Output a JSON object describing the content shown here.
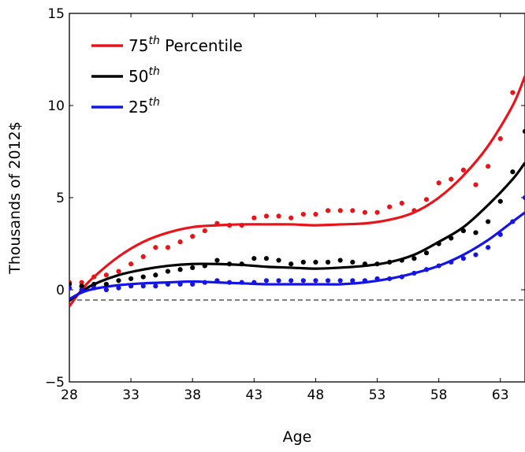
{
  "chart_data": {
    "type": "scatter",
    "xlabel": "Age",
    "ylabel": "Thousands of 2012$",
    "xlim": [
      28,
      65
    ],
    "ylim": [
      -5,
      15
    ],
    "xticks": [
      28,
      33,
      38,
      43,
      48,
      53,
      58,
      63
    ],
    "yticks": [
      -5,
      0,
      5,
      10,
      15
    ],
    "ytick_labels": [
      "−5",
      "0",
      "5",
      "10",
      "15"
    ],
    "grid": false,
    "reference_line": {
      "y": 0,
      "style": "dashed"
    },
    "legend": {
      "placement": "top-left",
      "entries": [
        {
          "base": "75",
          "sup": "th",
          "suffix": " Percentile",
          "color": "#e8141a"
        },
        {
          "base": "50",
          "sup": "th",
          "suffix": "",
          "color": "#000000"
        },
        {
          "base": "25",
          "sup": "th",
          "suffix": "",
          "color": "#1414e6"
        }
      ]
    },
    "series": [
      {
        "color": "#e8141a",
        "points": [
          [
            28,
            0.4
          ],
          [
            29,
            0.4
          ],
          [
            30,
            0.7
          ],
          [
            31,
            0.8
          ],
          [
            32,
            1.0
          ],
          [
            33,
            1.4
          ],
          [
            34,
            1.8
          ],
          [
            35,
            2.3
          ],
          [
            36,
            2.3
          ],
          [
            37,
            2.6
          ],
          [
            38,
            2.9
          ],
          [
            39,
            3.2
          ],
          [
            40,
            3.6
          ],
          [
            41,
            3.5
          ],
          [
            42,
            3.5
          ],
          [
            43,
            3.9
          ],
          [
            44,
            4.0
          ],
          [
            45,
            4.0
          ],
          [
            46,
            3.9
          ],
          [
            47,
            4.1
          ],
          [
            48,
            4.1
          ],
          [
            49,
            4.3
          ],
          [
            50,
            4.3
          ],
          [
            51,
            4.3
          ],
          [
            52,
            4.2
          ],
          [
            53,
            4.2
          ],
          [
            54,
            4.5
          ],
          [
            55,
            4.7
          ],
          [
            56,
            4.3
          ],
          [
            57,
            4.9
          ],
          [
            58,
            5.8
          ],
          [
            59,
            6.0
          ],
          [
            60,
            6.5
          ],
          [
            61,
            5.7
          ],
          [
            62,
            6.7
          ],
          [
            63,
            8.2
          ],
          [
            64,
            10.7
          ],
          [
            65,
            11.4
          ]
        ],
        "fit": [
          [
            28,
            -0.9
          ],
          [
            29,
            0.0
          ],
          [
            30,
            0.7
          ],
          [
            32,
            1.8
          ],
          [
            34,
            2.6
          ],
          [
            36,
            3.1
          ],
          [
            38,
            3.4
          ],
          [
            40,
            3.5
          ],
          [
            42,
            3.55
          ],
          [
            44,
            3.55
          ],
          [
            46,
            3.55
          ],
          [
            48,
            3.5
          ],
          [
            50,
            3.55
          ],
          [
            52,
            3.6
          ],
          [
            54,
            3.8
          ],
          [
            56,
            4.2
          ],
          [
            58,
            5.0
          ],
          [
            60,
            6.2
          ],
          [
            62,
            7.8
          ],
          [
            64,
            10.0
          ],
          [
            65,
            11.6
          ]
        ]
      },
      {
        "color": "#000000",
        "points": [
          [
            28,
            0.3
          ],
          [
            29,
            0.2
          ],
          [
            30,
            0.3
          ],
          [
            31,
            0.3
          ],
          [
            32,
            0.5
          ],
          [
            33,
            0.6
          ],
          [
            34,
            0.7
          ],
          [
            35,
            0.8
          ],
          [
            36,
            1.0
          ],
          [
            37,
            1.1
          ],
          [
            38,
            1.2
          ],
          [
            39,
            1.3
          ],
          [
            40,
            1.6
          ],
          [
            41,
            1.4
          ],
          [
            42,
            1.4
          ],
          [
            43,
            1.7
          ],
          [
            44,
            1.7
          ],
          [
            45,
            1.6
          ],
          [
            46,
            1.4
          ],
          [
            47,
            1.5
          ],
          [
            48,
            1.5
          ],
          [
            49,
            1.5
          ],
          [
            50,
            1.6
          ],
          [
            51,
            1.5
          ],
          [
            52,
            1.4
          ],
          [
            53,
            1.4
          ],
          [
            54,
            1.5
          ],
          [
            55,
            1.6
          ],
          [
            56,
            1.7
          ],
          [
            57,
            2.0
          ],
          [
            58,
            2.5
          ],
          [
            59,
            2.8
          ],
          [
            60,
            3.2
          ],
          [
            61,
            3.1
          ],
          [
            62,
            3.7
          ],
          [
            63,
            4.8
          ],
          [
            64,
            6.4
          ],
          [
            65,
            8.6
          ]
        ],
        "fit": [
          [
            28,
            -0.6
          ],
          [
            29,
            -0.1
          ],
          [
            30,
            0.3
          ],
          [
            32,
            0.8
          ],
          [
            34,
            1.1
          ],
          [
            36,
            1.3
          ],
          [
            38,
            1.4
          ],
          [
            40,
            1.4
          ],
          [
            42,
            1.35
          ],
          [
            44,
            1.25
          ],
          [
            46,
            1.2
          ],
          [
            48,
            1.15
          ],
          [
            50,
            1.2
          ],
          [
            52,
            1.3
          ],
          [
            54,
            1.5
          ],
          [
            56,
            1.9
          ],
          [
            58,
            2.6
          ],
          [
            60,
            3.4
          ],
          [
            62,
            4.6
          ],
          [
            64,
            6.0
          ],
          [
            65,
            6.9
          ]
        ]
      },
      {
        "color": "#1414e6",
        "points": [
          [
            28,
            0.1
          ],
          [
            29,
            0.0
          ],
          [
            30,
            0.1
          ],
          [
            31,
            0.0
          ],
          [
            32,
            0.1
          ],
          [
            33,
            0.2
          ],
          [
            34,
            0.2
          ],
          [
            35,
            0.2
          ],
          [
            36,
            0.3
          ],
          [
            37,
            0.3
          ],
          [
            38,
            0.3
          ],
          [
            39,
            0.4
          ],
          [
            40,
            0.5
          ],
          [
            41,
            0.4
          ],
          [
            42,
            0.4
          ],
          [
            43,
            0.4
          ],
          [
            44,
            0.5
          ],
          [
            45,
            0.5
          ],
          [
            46,
            0.5
          ],
          [
            47,
            0.5
          ],
          [
            48,
            0.5
          ],
          [
            49,
            0.5
          ],
          [
            50,
            0.5
          ],
          [
            51,
            0.5
          ],
          [
            52,
            0.5
          ],
          [
            53,
            0.6
          ],
          [
            54,
            0.6
          ],
          [
            55,
            0.7
          ],
          [
            56,
            0.9
          ],
          [
            57,
            1.1
          ],
          [
            58,
            1.3
          ],
          [
            59,
            1.5
          ],
          [
            60,
            1.7
          ],
          [
            61,
            1.9
          ],
          [
            62,
            2.3
          ],
          [
            63,
            3.0
          ],
          [
            64,
            3.7
          ],
          [
            65,
            5.0
          ]
        ],
        "fit": [
          [
            28,
            -0.5
          ],
          [
            29,
            -0.15
          ],
          [
            30,
            0.05
          ],
          [
            32,
            0.25
          ],
          [
            34,
            0.35
          ],
          [
            36,
            0.4
          ],
          [
            38,
            0.45
          ],
          [
            40,
            0.4
          ],
          [
            42,
            0.35
          ],
          [
            44,
            0.3
          ],
          [
            46,
            0.3
          ],
          [
            48,
            0.3
          ],
          [
            50,
            0.3
          ],
          [
            52,
            0.4
          ],
          [
            54,
            0.6
          ],
          [
            56,
            0.9
          ],
          [
            58,
            1.3
          ],
          [
            60,
            1.9
          ],
          [
            62,
            2.7
          ],
          [
            64,
            3.7
          ],
          [
            65,
            4.2
          ]
        ]
      }
    ]
  }
}
